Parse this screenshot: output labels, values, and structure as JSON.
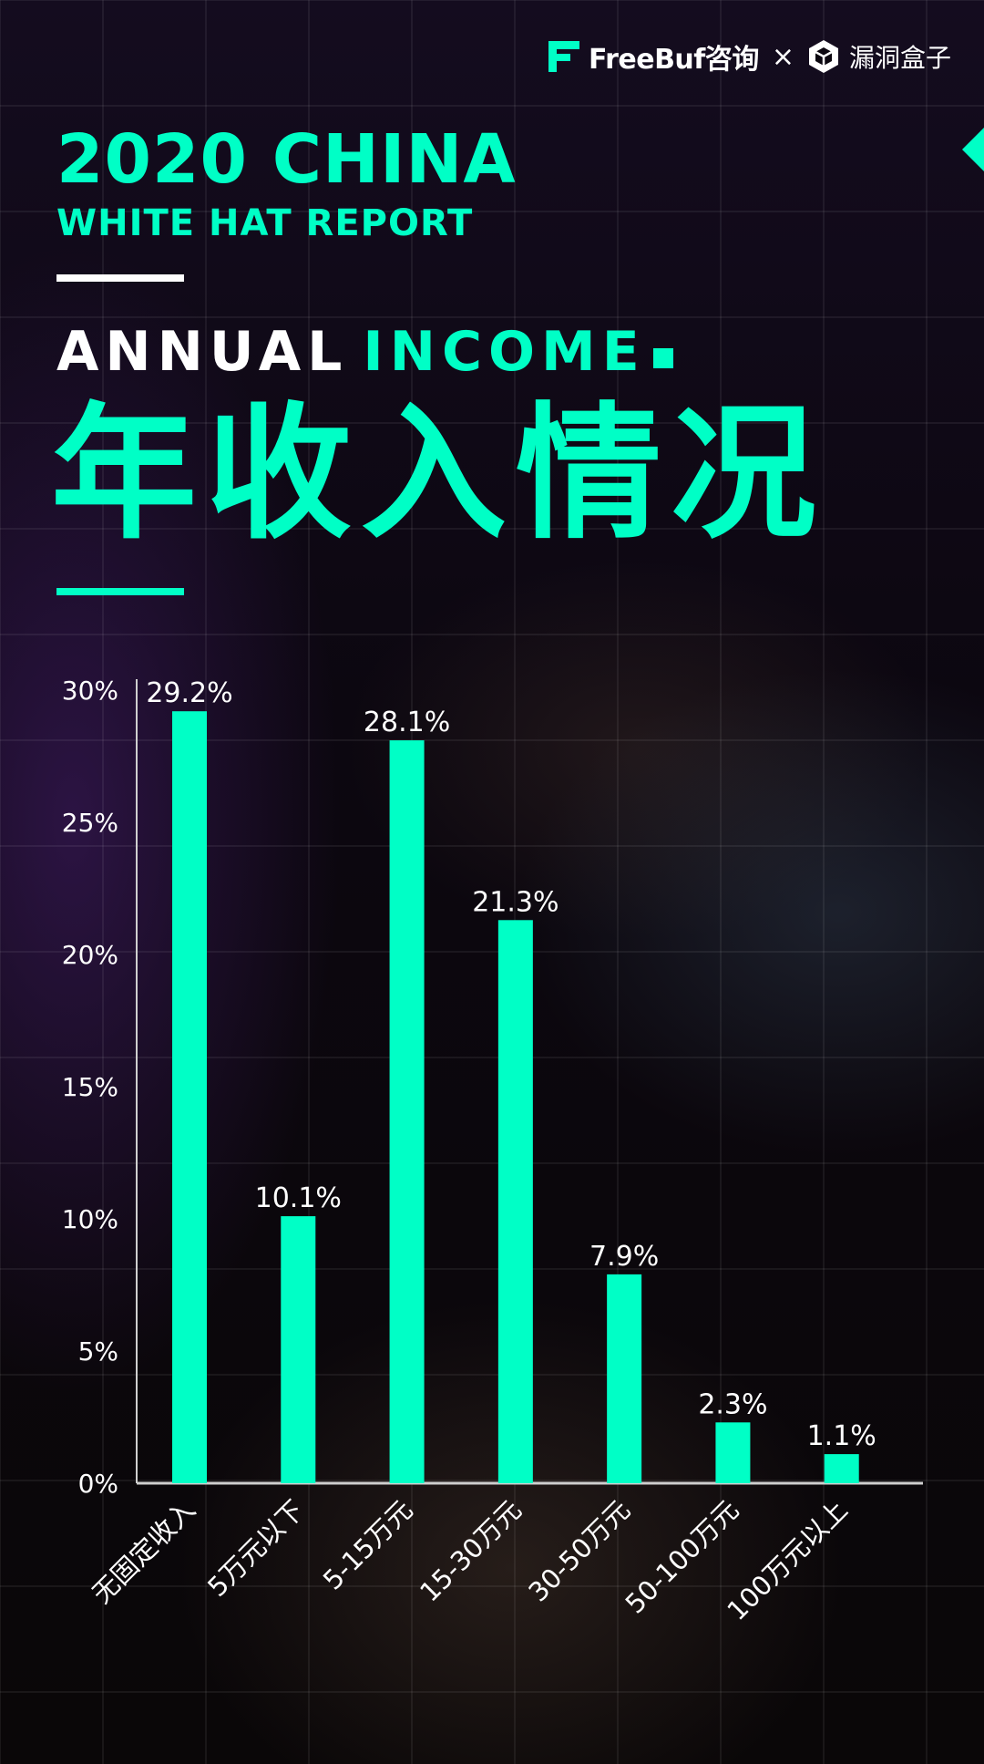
{
  "brand": {
    "name": "FreeBuf咨询",
    "separator": "×",
    "partner": "漏洞盒子"
  },
  "title": {
    "year_line": "2020 CHINA",
    "report_line": "WHITE HAT REPORT",
    "heading_en_white": "ANNUAL",
    "heading_en_green": "INCOME",
    "heading_cn": "年收入情况"
  },
  "colors": {
    "accent": "#00ffc6",
    "text": "#ffffff",
    "background": "#0c0710"
  },
  "icons": [
    "freebuf-logo-icon",
    "cube-logo-icon",
    "arrow-left-icon"
  ],
  "chart_data": {
    "type": "bar",
    "categories": [
      "无固定收入",
      "5万元以下",
      "5-15万元",
      "15-30万元",
      "30-50万元",
      "50-100万元",
      "100万元以上"
    ],
    "values": [
      29.2,
      10.1,
      28.1,
      21.3,
      7.9,
      2.3,
      1.1
    ],
    "value_labels": [
      "29.2%",
      "10.1%",
      "28.1%",
      "21.3%",
      "7.9%",
      "2.3%",
      "1.1%"
    ],
    "yticks": [
      0,
      5,
      10,
      15,
      20,
      25,
      30
    ],
    "ytick_labels": [
      "0%",
      "5%",
      "10%",
      "15%",
      "20%",
      "25%",
      "30%"
    ],
    "ylim": [
      0,
      30
    ],
    "grid": false,
    "legend": "none",
    "bar_color": "#00ffc6"
  }
}
